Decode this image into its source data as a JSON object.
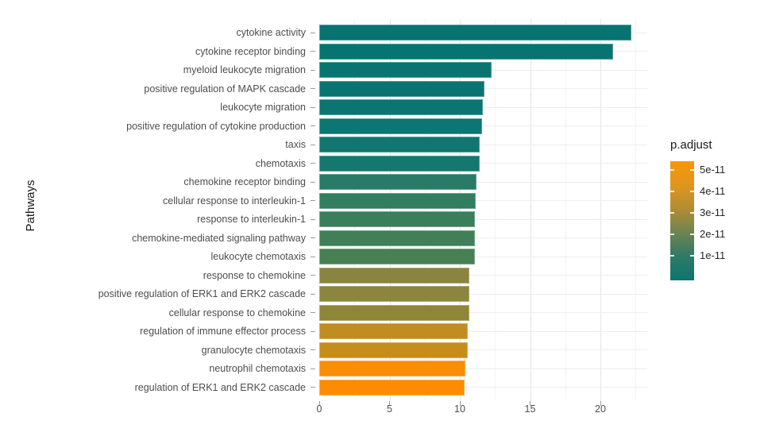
{
  "chart_data": {
    "type": "bar",
    "orientation": "horizontal",
    "title": "",
    "xlabel": "",
    "ylabel": "Pathways",
    "xlim": [
      0,
      23.3
    ],
    "x_ticks": [
      0,
      5,
      10,
      15,
      20
    ],
    "x_minor_gridlines": [
      2.5,
      7.5,
      12.5,
      17.5,
      22.5
    ],
    "grid": true,
    "legend_position": "right",
    "categories": [
      "cytokine activity",
      "cytokine receptor binding",
      "myeloid leukocyte migration",
      "positive regulation of MAPK cascade",
      "leukocyte migration",
      "positive regulation of cytokine production",
      "taxis",
      "chemotaxis",
      "chemokine receptor binding",
      "cellular response to interleukin-1",
      "response to interleukin-1",
      "chemokine-mediated signaling pathway",
      "leukocyte chemotaxis",
      "response to chemokine",
      "positive regulation of ERK1 and ERK2 cascade",
      "cellular response to chemokine",
      "regulation of immune effector process",
      "granulocyte chemotaxis",
      "neutrophil chemotaxis",
      "regulation of ERK1 and ERK2 cascade"
    ],
    "values": [
      22.2,
      20.9,
      12.25,
      11.75,
      11.65,
      11.6,
      11.4,
      11.4,
      11.2,
      11.15,
      11.1,
      11.05,
      11.05,
      10.7,
      10.65,
      10.7,
      10.55,
      10.55,
      10.4,
      10.35
    ],
    "bar_colors": [
      "#077471",
      "#077471",
      "#087572",
      "#097572",
      "#0a7572",
      "#0c7672",
      "#107770",
      "#15786e",
      "#287b66",
      "#337d60",
      "#3a7e5c",
      "#407f58",
      "#498053",
      "#898540",
      "#8c863c",
      "#8f8638",
      "#c28d20",
      "#c68d1b",
      "#f98d04",
      "#fd8c00"
    ],
    "legend": {
      "title": "p.adjust",
      "tick_labels": [
        "5e-11",
        "4e-11",
        "3e-11",
        "2e-11",
        "1e-11"
      ],
      "high_color": "#f8950a",
      "low_color": "#0b7571",
      "gradient_stops": [
        "#f8950a",
        "#df961c",
        "#b08d33",
        "#6e8351",
        "#2f7a66",
        "#0b7571"
      ]
    }
  }
}
